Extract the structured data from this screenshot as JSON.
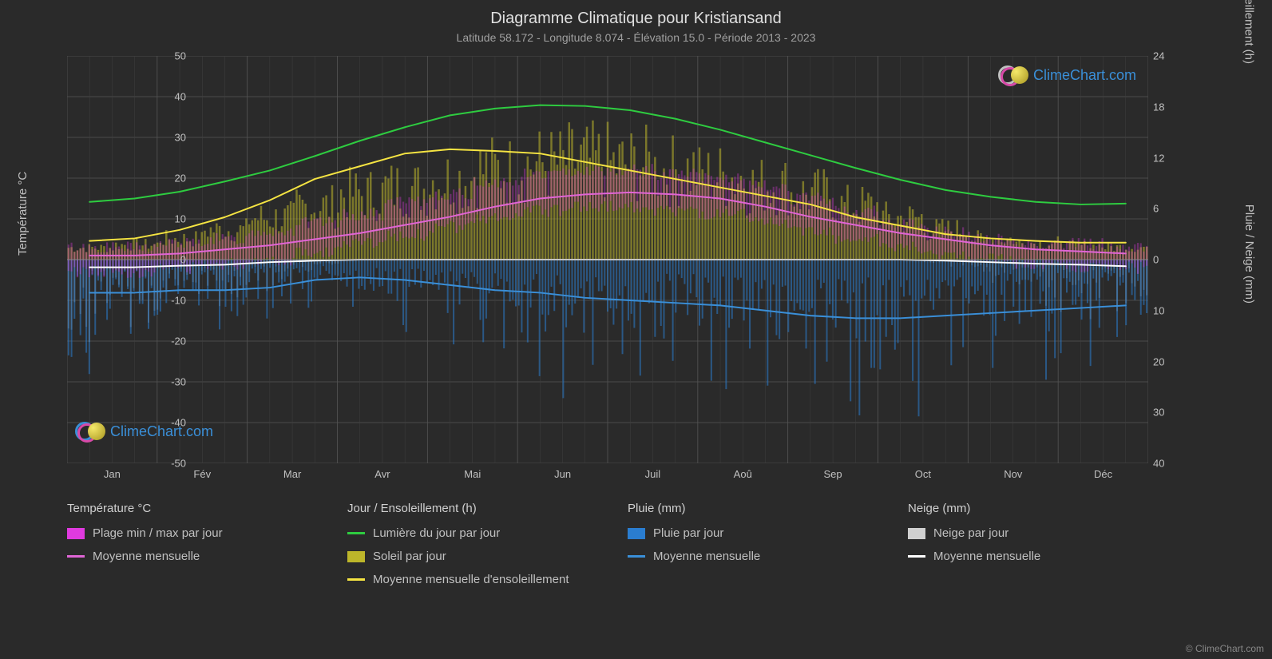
{
  "title": "Diagramme Climatique pour Kristiansand",
  "subtitle": "Latitude 58.172 - Longitude 8.074 - Élévation 15.0 - Période 2013 - 2023",
  "axis_left_label": "Température °C",
  "axis_right_label_top": "Jour / Ensoleillement (h)",
  "axis_right_label_bottom": "Pluie / Neige (mm)",
  "copyright": "© ClimeChart.com",
  "logo_text": "ClimeChart.com",
  "logo_color_ring": "#3a8fd8",
  "logo_color_ring2": "#d84aa8",
  "logo_color_disc": "#d8c83a",
  "logo_text_color": "#3a8fd8",
  "chart": {
    "background": "#2a2a2a",
    "plot_bg": "#2a2a2a",
    "grid_color": "#555555",
    "grid_minor_color": "#404040",
    "months": [
      "Jan",
      "Fév",
      "Mar",
      "Avr",
      "Mai",
      "Jun",
      "Juil",
      "Aoû",
      "Sep",
      "Oct",
      "Nov",
      "Déc"
    ],
    "temp_axis": {
      "min": -50,
      "max": 50,
      "step": 10
    },
    "hours_axis": {
      "min": 0,
      "max": 24,
      "step": 6
    },
    "precip_axis": {
      "min": 0,
      "max": 40,
      "step": 10
    },
    "lines": {
      "daylight": {
        "color": "#2ecc40",
        "width": 2,
        "desc": "Lumière du jour par jour",
        "values_h": [
          6.8,
          7.2,
          8.0,
          9.2,
          10.5,
          12.2,
          14.0,
          15.6,
          17.0,
          17.8,
          18.2,
          18.1,
          17.6,
          16.6,
          15.3,
          13.8,
          12.3,
          10.8,
          9.4,
          8.2,
          7.4,
          6.8,
          6.5,
          6.6
        ]
      },
      "sunshine_avg": {
        "color": "#f5e442",
        "width": 2,
        "desc": "Moyenne mensuelle d'ensoleillement",
        "values_h": [
          2.2,
          2.5,
          3.5,
          5.0,
          7.0,
          9.5,
          11.0,
          12.5,
          13.0,
          12.8,
          12.5,
          11.5,
          10.5,
          9.5,
          8.5,
          7.5,
          6.5,
          5.0,
          4.0,
          3.0,
          2.5,
          2.2,
          2.0,
          2.0
        ]
      },
      "temp_avg": {
        "color": "#e065d6",
        "width": 2,
        "desc": "Moyenne mensuelle",
        "values_c": [
          1.0,
          1.0,
          1.5,
          2.5,
          3.5,
          5.0,
          6.5,
          8.5,
          10.5,
          13.0,
          15.0,
          16.0,
          16.5,
          16.0,
          15.0,
          13.0,
          10.5,
          8.5,
          6.5,
          5.0,
          3.5,
          2.5,
          2.0,
          1.5
        ]
      },
      "rain_avg": {
        "color": "#3a8fd8",
        "width": 2,
        "desc": "Moyenne mensuelle",
        "values_mm": [
          6.5,
          6.5,
          6.0,
          6.0,
          5.5,
          4.0,
          3.5,
          4.0,
          5.0,
          6.0,
          6.5,
          7.5,
          8.0,
          8.5,
          9.0,
          10.0,
          11.0,
          11.5,
          11.5,
          11.0,
          10.5,
          10.0,
          9.5,
          9.0
        ]
      },
      "snow_avg": {
        "color": "#ffffff",
        "width": 2,
        "desc": "Moyenne mensuelle",
        "values_mm": [
          1.5,
          1.5,
          1.2,
          1.0,
          0.5,
          0.2,
          0.0,
          0.0,
          0.0,
          0.0,
          0.0,
          0.0,
          0.0,
          0.0,
          0.0,
          0.0,
          0.0,
          0.0,
          0.0,
          0.2,
          0.5,
          0.8,
          1.0,
          1.3
        ]
      }
    },
    "bands": {
      "temp_minmax": {
        "color": "#e03adf",
        "opacity": 0.35,
        "desc": "Plage min / max par jour",
        "high_c": [
          3,
          3,
          4,
          5,
          7,
          9,
          11,
          14,
          16,
          19,
          21,
          22,
          22,
          21,
          20,
          18,
          15,
          12,
          9,
          7,
          5,
          4,
          4,
          3
        ],
        "low_c": [
          -3,
          -3,
          -2,
          -1,
          0,
          2,
          4,
          6,
          8,
          10,
          12,
          13,
          13,
          12,
          11,
          9,
          7,
          5,
          3,
          1,
          0,
          -1,
          -2,
          -2
        ]
      },
      "sunshine_daily": {
        "color": "#bdb62a",
        "opacity": 0.55,
        "desc": "Soleil par jour",
        "values_h": [
          2,
          2.5,
          3.5,
          5,
          7,
          9,
          11,
          12,
          13.5,
          15,
          16,
          16.5,
          16,
          15,
          14,
          12.5,
          11,
          9,
          7,
          5,
          3.5,
          2.8,
          2.3,
          2.1
        ]
      }
    },
    "bars": {
      "rain_daily": {
        "color": "#2a7dd0",
        "opacity": 0.55,
        "desc": "Pluie par jour",
        "max_mm": [
          25,
          22,
          20,
          18,
          15,
          12,
          14,
          18,
          20,
          25,
          28,
          30,
          30,
          28,
          30,
          32,
          35,
          35,
          32,
          30,
          28,
          26,
          25,
          24
        ]
      },
      "snow_daily": {
        "color": "#d0d0d0",
        "opacity": 0.3,
        "desc": "Neige par jour",
        "max_mm": [
          18,
          20,
          15,
          12,
          8,
          3,
          0,
          0,
          0,
          0,
          0,
          0,
          0,
          0,
          0,
          0,
          0,
          0,
          0,
          2,
          6,
          10,
          14,
          16
        ]
      }
    }
  },
  "legend": {
    "cols": [
      {
        "heading": "Température °C",
        "items": [
          {
            "type": "swatch",
            "color": "#e03adf",
            "label": "Plage min / max par jour"
          },
          {
            "type": "line",
            "color": "#e065d6",
            "label": "Moyenne mensuelle"
          }
        ]
      },
      {
        "heading": "Jour / Ensoleillement (h)",
        "items": [
          {
            "type": "line",
            "color": "#2ecc40",
            "label": "Lumière du jour par jour"
          },
          {
            "type": "swatch",
            "color": "#bdb62a",
            "label": "Soleil par jour"
          },
          {
            "type": "line",
            "color": "#f5e442",
            "label": "Moyenne mensuelle d'ensoleillement"
          }
        ]
      },
      {
        "heading": "Pluie (mm)",
        "items": [
          {
            "type": "swatch",
            "color": "#2a7dd0",
            "label": "Pluie par jour"
          },
          {
            "type": "line",
            "color": "#3a8fd8",
            "label": "Moyenne mensuelle"
          }
        ]
      },
      {
        "heading": "Neige (mm)",
        "items": [
          {
            "type": "swatch",
            "color": "#d0d0d0",
            "label": "Neige par jour"
          },
          {
            "type": "line",
            "color": "#ffffff",
            "label": "Moyenne mensuelle"
          }
        ]
      }
    ]
  }
}
